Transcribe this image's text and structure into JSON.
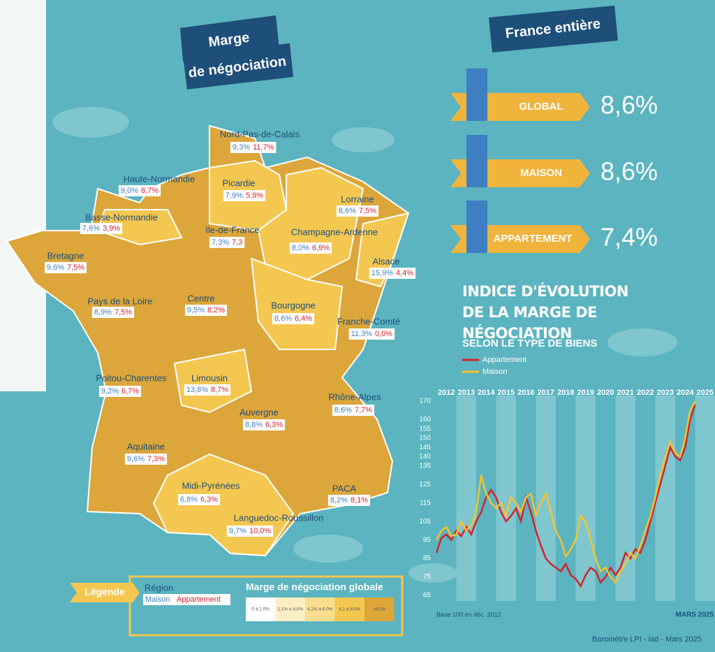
{
  "title": [
    "Marge",
    "de négociation"
  ],
  "france_entiere": {
    "title": "France entière",
    "items": [
      {
        "label": "GLOBAL",
        "value": "8,6%"
      },
      {
        "label": "MAISON",
        "value": "8,6%"
      },
      {
        "label": "APPARTEMENT",
        "value": "7,4%"
      }
    ]
  },
  "regions": [
    {
      "name": "Nord-Pas-de-Calais",
      "maison": "9,3%",
      "appartement": "11,7%"
    },
    {
      "name": "Haute-Normandie",
      "maison": "9,0%",
      "appartement": "8,7%"
    },
    {
      "name": "Picardie",
      "maison": "7,9%",
      "appartement": "5,9%"
    },
    {
      "name": "Basse-Normandie",
      "maison": "7,6%",
      "appartement": "3,9%"
    },
    {
      "name": "Lorraine",
      "maison": "8,6%",
      "appartement": "7,5%"
    },
    {
      "name": "Ile-de-France",
      "maison": "7,3%",
      "appartement": "7,3"
    },
    {
      "name": "Champagne-Ardenne",
      "maison": "8,0%",
      "appartement": "6,9%"
    },
    {
      "name": "Bretagne",
      "maison": "9,6%",
      "appartement": "7,5%"
    },
    {
      "name": "Alsace",
      "maison": "15,9%",
      "appartement": "4,4%"
    },
    {
      "name": "Pays de la Loire",
      "maison": "8,9%",
      "appartement": "7,5%"
    },
    {
      "name": "Centre",
      "maison": "9,5%",
      "appartement": "8,2%"
    },
    {
      "name": "Bourgogne",
      "maison": "8,6%",
      "appartement": "6,4%"
    },
    {
      "name": "Franche-Comté",
      "maison": "11,3%",
      "appartement": "0,0%"
    },
    {
      "name": "Poitou-Charentes",
      "maison": "9,2%",
      "appartement": "6,7%"
    },
    {
      "name": "Limousin",
      "maison": "13,8%",
      "appartement": "8,7%"
    },
    {
      "name": "Auvergne",
      "maison": "8,8%",
      "appartement": "6,3%"
    },
    {
      "name": "Rhône-Alpes",
      "maison": "8,6%",
      "appartement": "7,7%"
    },
    {
      "name": "Aquitaine",
      "maison": "9,6%",
      "appartement": "7,3%"
    },
    {
      "name": "Midi-Pyrénées",
      "maison": "6,8%",
      "appartement": "6,3%"
    },
    {
      "name": "PACA",
      "maison": "8,2%",
      "appartement": "8,1%"
    },
    {
      "name": "Languedoc-Roussillon",
      "maison": "9,7%",
      "appartement": "10,0%"
    }
  ],
  "legend": {
    "title": "Légende",
    "region": "Région",
    "maison": "Maison",
    "appartement": "Appartement",
    "scale_title": "Marge de négociation globale",
    "scale": [
      "0 à 2,0%",
      "2,1% à 4,0%",
      "4,1% à 6,0%",
      "6,1 à 8,0%",
      ">8,1%"
    ]
  },
  "chart_data": {
    "type": "line",
    "title": "INDICE D'ÉVOLUTION DE LA MARGE DE NÉGOCIATION",
    "subtitle": "SELON LE TYPE DE BIENS",
    "note": "Base 100 en déc. 2012",
    "end_label": "MARS 2025",
    "x": [
      2012,
      2012.25,
      2012.5,
      2012.75,
      2013,
      2013.25,
      2013.5,
      2013.75,
      2014,
      2014.25,
      2014.5,
      2014.75,
      2015,
      2015.25,
      2015.5,
      2015.75,
      2016,
      2016.25,
      2016.5,
      2016.75,
      2017,
      2017.25,
      2017.5,
      2017.75,
      2018,
      2018.25,
      2018.5,
      2018.75,
      2019,
      2019.25,
      2019.5,
      2019.75,
      2020,
      2020.25,
      2020.5,
      2020.75,
      2021,
      2021.25,
      2021.5,
      2021.75,
      2022,
      2022.25,
      2022.5,
      2022.75,
      2023,
      2023.25,
      2023.5,
      2023.75,
      2024,
      2024.25,
      2024.5,
      2024.75,
      2025
    ],
    "xlim": [
      2012,
      2026
    ],
    "xticks": [
      2012,
      2013,
      2014,
      2015,
      2016,
      2017,
      2018,
      2019,
      2020,
      2021,
      2022,
      2023,
      2024,
      2025
    ],
    "ylim": [
      62,
      170
    ],
    "yticks": [
      170,
      160,
      155,
      150,
      145,
      140,
      135,
      125,
      115,
      105,
      95,
      85,
      75,
      65
    ],
    "series": [
      {
        "name": "Appartement",
        "color": "#d3232a",
        "values": [
          88,
          96,
          98,
          95,
          100,
          97,
          102,
          98,
          105,
          110,
          118,
          122,
          118,
          110,
          105,
          108,
          112,
          105,
          118,
          110,
          100,
          92,
          85,
          82,
          80,
          78,
          82,
          76,
          74,
          70,
          76,
          80,
          78,
          72,
          75,
          80,
          76,
          80,
          88,
          85,
          90,
          88,
          95,
          105,
          115,
          125,
          135,
          145,
          140,
          138,
          145,
          160,
          168
        ]
      },
      {
        "name": "Maison",
        "color": "#f2c531",
        "values": [
          95,
          100,
          102,
          97,
          98,
          105,
          100,
          103,
          110,
          130,
          120,
          115,
          112,
          115,
          108,
          118,
          115,
          110,
          118,
          120,
          108,
          115,
          120,
          110,
          100,
          95,
          86,
          90,
          95,
          108,
          105,
          95,
          85,
          78,
          80,
          75,
          72,
          78,
          82,
          88,
          85,
          92,
          100,
          108,
          118,
          130,
          140,
          148,
          142,
          140,
          150,
          165,
          170
        ]
      }
    ]
  },
  "source": "Baromètre LPI - iad - Mars 2025"
}
